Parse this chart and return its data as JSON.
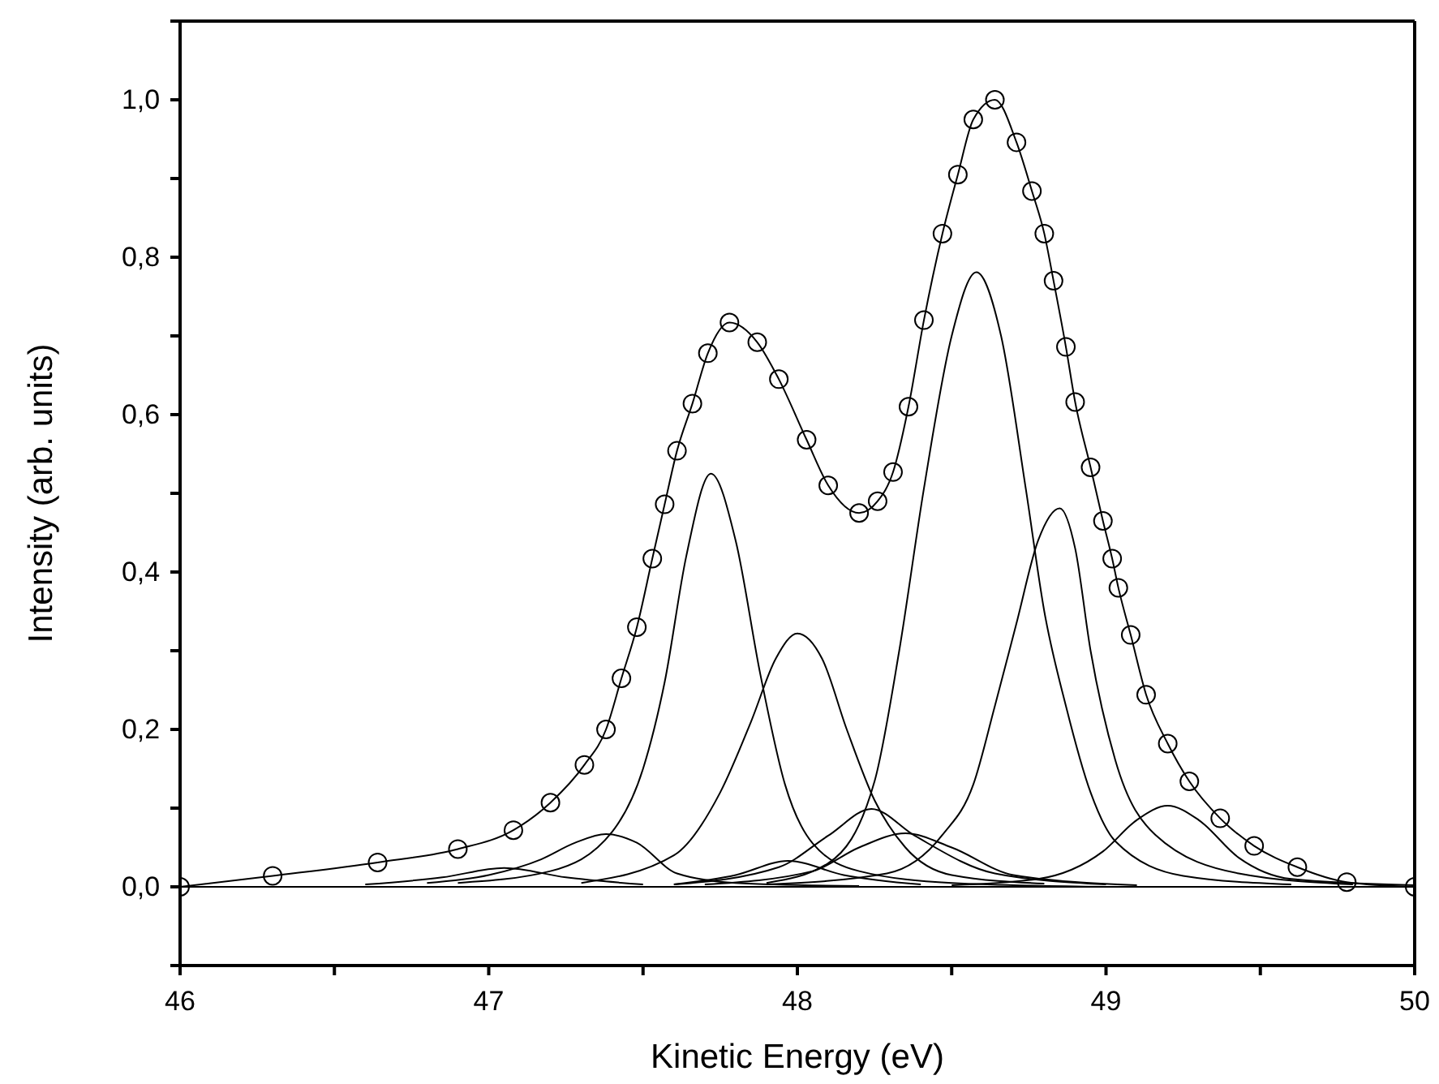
{
  "chart_data": {
    "type": "line",
    "xlabel": "Kinetic Energy (eV)",
    "ylabel": "Intensity (arb. units)",
    "xlim": [
      46,
      50
    ],
    "ylim": [
      -0.1,
      1.1
    ],
    "xticks": [
      46,
      {
        "value": 46.5,
        "label": null
      },
      47,
      {
        "value": 47.5,
        "label": null
      },
      48,
      {
        "value": 48.5,
        "label": null
      },
      49,
      {
        "value": 49.5,
        "label": null
      },
      50
    ],
    "yticks": [
      {
        "value": -0.1,
        "label": null
      },
      {
        "value": 0,
        "label": "0,0"
      },
      {
        "value": 0.1,
        "label": null
      },
      {
        "value": 0.2,
        "label": "0,2"
      },
      {
        "value": 0.3,
        "label": null
      },
      {
        "value": 0.4,
        "label": "0,4"
      },
      {
        "value": 0.5,
        "label": null
      },
      {
        "value": 0.6,
        "label": "0,6"
      },
      {
        "value": 0.7,
        "label": null
      },
      {
        "value": 0.8,
        "label": "0,8"
      },
      {
        "value": 0.9,
        "label": null
      },
      {
        "value": 1.0,
        "label": "1,0"
      },
      {
        "value": 1.1,
        "label": null
      }
    ],
    "series": [
      {
        "marker": "circle",
        "color": "#000000",
        "x": [
          46.0,
          46.3,
          46.64,
          46.9,
          47.08,
          47.2,
          47.31,
          47.38,
          47.43,
          47.48,
          47.53,
          47.57,
          47.61,
          47.66,
          47.71,
          47.78,
          47.87,
          47.94,
          48.03,
          48.1,
          48.2,
          48.26,
          48.31,
          48.36,
          48.41,
          48.47,
          48.52,
          48.57,
          48.64,
          48.71,
          48.76,
          48.8,
          48.83,
          48.87,
          48.9,
          48.95,
          48.99,
          49.02,
          49.04,
          49.08,
          49.13,
          49.2,
          49.27,
          49.37,
          49.48,
          49.62,
          49.78,
          50.0
        ],
        "values": [
          0.0,
          0.014,
          0.031,
          0.048,
          0.072,
          0.107,
          0.155,
          0.2,
          0.265,
          0.33,
          0.417,
          0.486,
          0.554,
          0.614,
          0.678,
          0.717,
          0.692,
          0.645,
          0.568,
          0.51,
          0.475,
          0.49,
          0.527,
          0.61,
          0.72,
          0.83,
          0.905,
          0.975,
          1.0,
          0.946,
          0.884,
          0.83,
          0.77,
          0.686,
          0.616,
          0.533,
          0.465,
          0.417,
          0.38,
          0.32,
          0.244,
          0.182,
          0.134,
          0.087,
          0.052,
          0.025,
          0.006,
          0.0
        ]
      },
      {
        "color": "#000000",
        "x": [
          46.9,
          47.2,
          47.4,
          47.5,
          47.57,
          47.64,
          47.72,
          47.8,
          47.88,
          47.96,
          48.05,
          48.2,
          48.5,
          49.0
        ],
        "values": [
          0.005,
          0.02,
          0.07,
          0.15,
          0.26,
          0.42,
          0.525,
          0.44,
          0.27,
          0.13,
          0.055,
          0.02,
          0.005,
          0.0
        ]
      },
      {
        "color": "#000000",
        "x": [
          47.3,
          47.6,
          47.75,
          47.85,
          47.93,
          48.0,
          48.08,
          48.16,
          48.25,
          48.35,
          48.5,
          48.8
        ],
        "values": [
          0.005,
          0.04,
          0.12,
          0.21,
          0.29,
          0.322,
          0.29,
          0.2,
          0.11,
          0.05,
          0.015,
          0.004
        ]
      },
      {
        "color": "#000000",
        "x": [
          47.9,
          48.1,
          48.25,
          48.33,
          48.41,
          48.5,
          48.58,
          48.66,
          48.74,
          48.8,
          48.87,
          48.95,
          49.03,
          49.25,
          49.6
        ],
        "values": [
          0.005,
          0.03,
          0.134,
          0.3,
          0.506,
          0.7,
          0.781,
          0.7,
          0.506,
          0.35,
          0.23,
          0.12,
          0.058,
          0.014,
          0.003
        ]
      },
      {
        "color": "#000000",
        "x": [
          47.9,
          48.29,
          48.47,
          48.57,
          48.64,
          48.71,
          48.78,
          48.85,
          48.9,
          48.95,
          49.03,
          49.16,
          49.43,
          49.8
        ],
        "values": [
          0.003,
          0.017,
          0.066,
          0.13,
          0.23,
          0.335,
          0.44,
          0.481,
          0.43,
          0.3,
          0.161,
          0.066,
          0.017,
          0.003
        ]
      },
      {
        "color": "#000000",
        "x": [
          48.5,
          48.78,
          48.99,
          49.1,
          49.2,
          49.3,
          49.43,
          49.6,
          50.0
        ],
        "values": [
          0.002,
          0.01,
          0.045,
          0.085,
          0.103,
          0.085,
          0.037,
          0.01,
          0.002
        ]
      },
      {
        "color": "#000000",
        "x": [
          46.8,
          47.0,
          47.17,
          47.28,
          47.38,
          47.48,
          47.61,
          47.8,
          48.2
        ],
        "values": [
          0.005,
          0.015,
          0.035,
          0.056,
          0.067,
          0.056,
          0.017,
          0.005,
          0.001
        ]
      },
      {
        "color": "#000000",
        "x": [
          47.6,
          47.94,
          48.1,
          48.24,
          48.38,
          48.64,
          49.0
        ],
        "values": [
          0.003,
          0.025,
          0.065,
          0.099,
          0.065,
          0.017,
          0.003
        ]
      },
      {
        "color": "#000000",
        "x": [
          47.7,
          48.05,
          48.2,
          48.35,
          48.5,
          48.7,
          49.1
        ],
        "values": [
          0.003,
          0.02,
          0.05,
          0.068,
          0.05,
          0.015,
          0.002
        ]
      },
      {
        "color": "#000000",
        "x": [
          47.6,
          47.8,
          47.97,
          48.15,
          48.4
        ],
        "values": [
          0.003,
          0.015,
          0.033,
          0.015,
          0.003
        ]
      },
      {
        "color": "#000000",
        "x": [
          46.6,
          46.85,
          47.05,
          47.25,
          47.5
        ],
        "values": [
          0.003,
          0.012,
          0.024,
          0.012,
          0.003
        ]
      },
      {
        "color": "#000000",
        "x": [
          46.0,
          50.0
        ],
        "values": [
          0.0,
          0.0
        ]
      }
    ]
  }
}
